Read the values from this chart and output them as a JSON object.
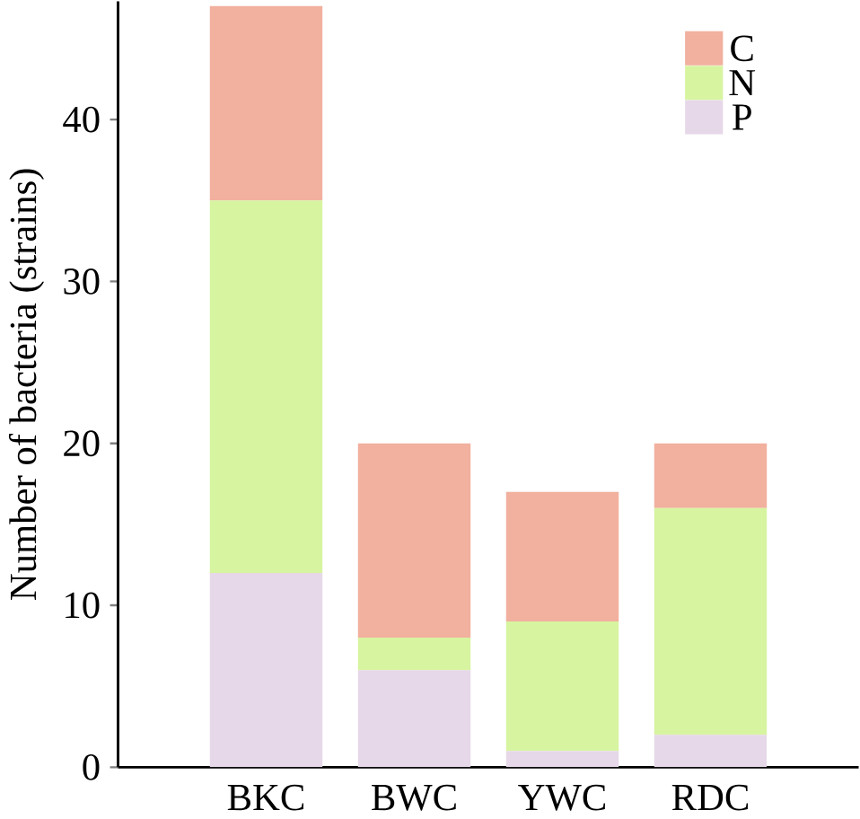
{
  "chart_data": {
    "type": "bar",
    "stacked": true,
    "ylabel": "Number of bacteria (strains)",
    "categories": [
      "BKC",
      "BWC",
      "YWC",
      "RDC"
    ],
    "series": [
      {
        "name": "P",
        "color": "#e6d8e8",
        "values": [
          12,
          6,
          1,
          2
        ]
      },
      {
        "name": "N",
        "color": "#d7f4a0",
        "values": [
          23,
          2,
          8,
          14
        ]
      },
      {
        "name": "C",
        "color": "#f2b09e",
        "values": [
          12,
          12,
          8,
          4
        ]
      }
    ],
    "ylim": [
      0,
      47.3
    ],
    "yticks": [
      0,
      10,
      20,
      30,
      40
    ],
    "legend": "top right",
    "grid": false
  }
}
